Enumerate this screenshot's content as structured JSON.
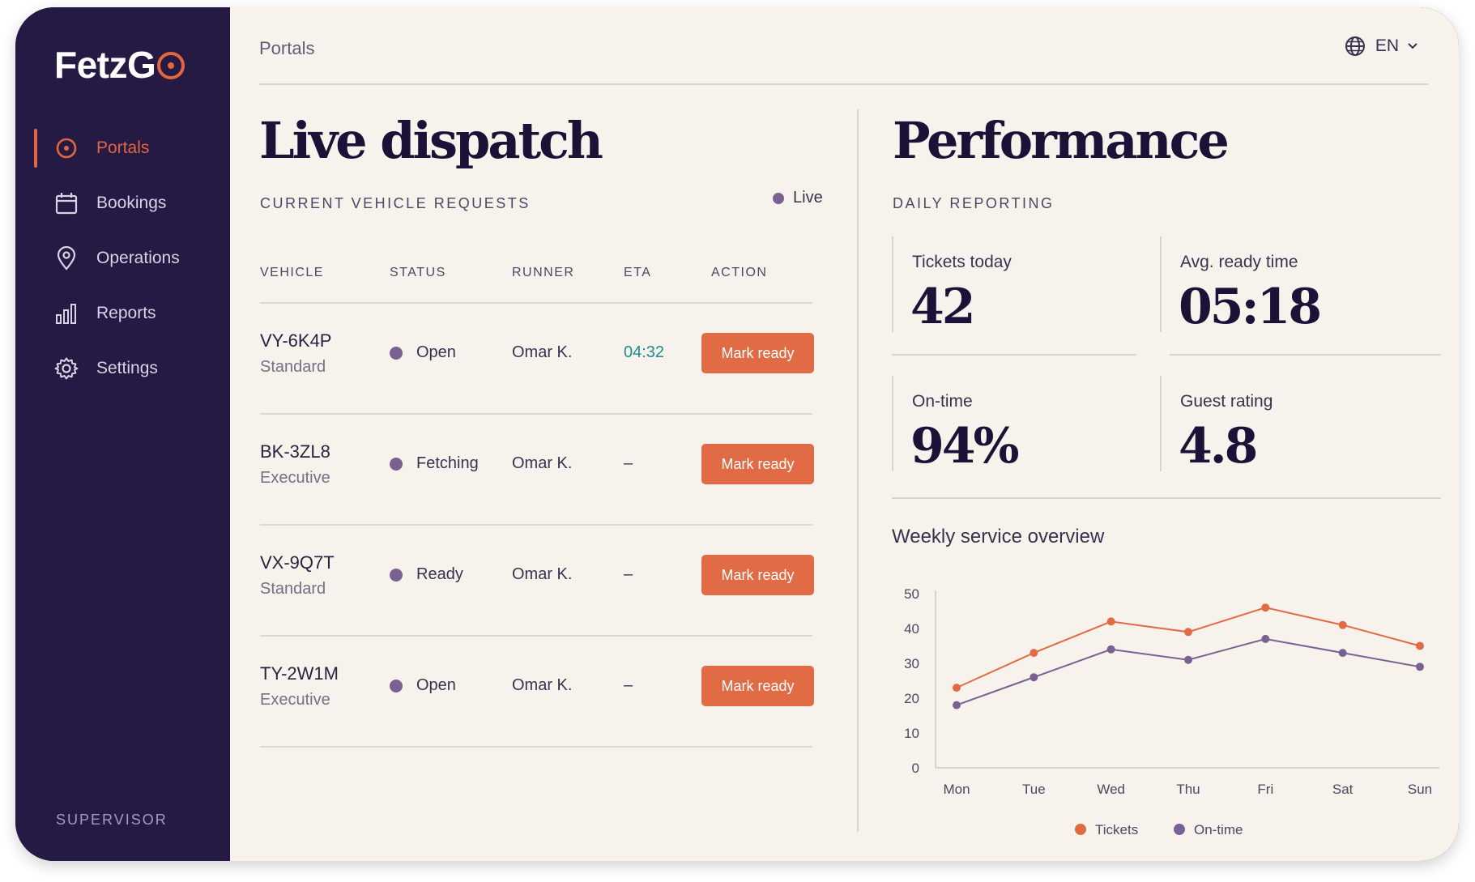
{
  "app": {
    "logo": "FetzG",
    "role": "SUPERVISOR"
  },
  "sidebar": {
    "items": [
      {
        "label": "Portals",
        "icon": "portal-icon",
        "active": true
      },
      {
        "label": "Bookings",
        "icon": "calendar-icon",
        "active": false
      },
      {
        "label": "Operations",
        "icon": "location-pin-icon",
        "active": false
      },
      {
        "label": "Reports",
        "icon": "bar-chart-icon",
        "active": false
      },
      {
        "label": "Settings",
        "icon": "gear-icon",
        "active": false
      }
    ]
  },
  "header": {
    "breadcrumb": "Portals",
    "language": "EN"
  },
  "dispatch": {
    "title": "Live dispatch",
    "subtitle": "CURRENT VEHICLE REQUESTS",
    "live_label": "Live",
    "columns": [
      "VEHICLE",
      "STATUS",
      "RUNNER",
      "ETA",
      "ACTION"
    ],
    "rows": [
      {
        "vehicle": "VY-6K4P",
        "class": "Standard",
        "status": "Open",
        "runner": "Omar K.",
        "eta": "04:32",
        "action": "Mark ready"
      },
      {
        "vehicle": "BK-3ZL8",
        "class": "Executive",
        "status": "Fetching",
        "runner": "Omar K.",
        "eta": "–",
        "action": "Mark ready"
      },
      {
        "vehicle": "VX-9Q7T",
        "class": "Standard",
        "status": "Ready",
        "runner": "Omar K.",
        "eta": "–",
        "action": "Mark ready"
      },
      {
        "vehicle": "TY-2W1M",
        "class": "Executive",
        "status": "Open",
        "runner": "Omar K.",
        "eta": "–",
        "action": "Mark ready"
      }
    ]
  },
  "performance": {
    "title": "Performance",
    "subtitle": "DAILY REPORTING",
    "kpis": [
      {
        "label": "Tickets today",
        "value": "42"
      },
      {
        "label": "Avg. ready time",
        "value": "05:18"
      },
      {
        "label": "On-time",
        "value": "94%"
      },
      {
        "label": "Guest rating",
        "value": "4.8"
      }
    ],
    "chart_title": "Weekly service overview"
  },
  "colors": {
    "accent": "#e06b44",
    "sidebar": "#251a44",
    "background": "#f7f3ec",
    "tickets_series": "#e06b44",
    "ontime_series": "#7a6191",
    "eta_highlight": "#1d8d93"
  },
  "chart_data": {
    "type": "line",
    "title": "Weekly service overview",
    "x": [
      "Mon",
      "Tue",
      "Wed",
      "Thu",
      "Fri",
      "Sat",
      "Sun"
    ],
    "yticks": [
      0,
      10,
      20,
      30,
      40,
      50
    ],
    "ylim": [
      0,
      50
    ],
    "grid": false,
    "legend_position": "bottom-center",
    "series": [
      {
        "name": "Tickets",
        "color": "#e06b44",
        "values": [
          23,
          33,
          42,
          39,
          46,
          41,
          35
        ]
      },
      {
        "name": "On-time",
        "color": "#7a6191",
        "values": [
          18,
          26,
          34,
          31,
          37,
          33,
          29
        ]
      }
    ]
  }
}
